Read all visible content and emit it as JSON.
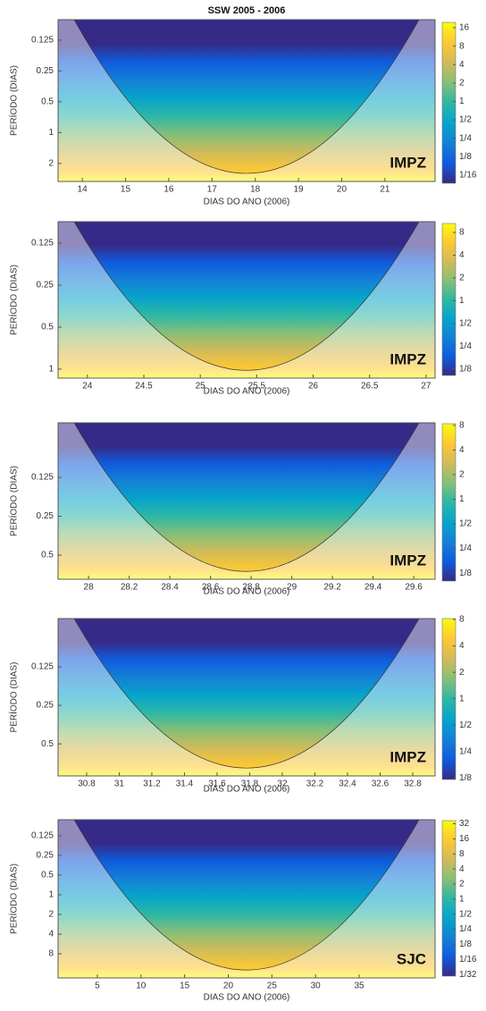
{
  "chart_data": [
    {
      "type": "heatmap",
      "title": "SSW 2005 - 2006",
      "xlabel": "DIAS DO ANO (2006)",
      "ylabel": "PERÍODO (DIAS)",
      "annotation": "IMPZ",
      "xlim": [
        13.44,
        22.16
      ],
      "xticks": [
        14,
        15,
        16,
        17,
        18,
        19,
        20,
        21
      ],
      "ylim": [
        0.079,
        3.0
      ],
      "yticks": [
        0.125,
        0.25,
        0.5,
        1,
        2
      ],
      "y_log": true,
      "clim": [
        0.046,
        19.6
      ],
      "cticks": [
        16,
        8,
        4,
        2,
        1,
        {
          "value": 0.5,
          "label": "1/2"
        },
        {
          "value": 0.25,
          "label": "1/4"
        },
        {
          "value": 0.125,
          "label": "1/8"
        },
        {
          "value": 0.0625,
          "label": "1/16"
        }
      ],
      "colormap": [
        "#352a87",
        "#0f5cdd",
        "#1481d6",
        "#06a4ca",
        "#2eb7a4",
        "#87bf77",
        "#d1bb59",
        "#fec832",
        "#f9fb0e"
      ]
    },
    {
      "type": "heatmap",
      "xlabel": "DIAS DO ANO (2006)",
      "ylabel": "PERÍODO (DIAS)",
      "annotation": "IMPZ",
      "xlim": [
        23.74,
        27.08
      ],
      "xticks": [
        24,
        24.5,
        25,
        25.5,
        26,
        26.5,
        27
      ],
      "ylim": [
        0.0877,
        1.16
      ],
      "yticks": [
        0.125,
        0.25,
        0.5,
        1
      ],
      "y_log": true,
      "clim": [
        0.103,
        10.5
      ],
      "cticks": [
        8,
        4,
        2,
        1,
        {
          "value": 0.5,
          "label": "1/2"
        },
        {
          "value": 0.25,
          "label": "1/4"
        },
        {
          "value": 0.125,
          "label": "1/8"
        }
      ],
      "colormap": [
        "#352a87",
        "#0f5cdd",
        "#1481d6",
        "#06a4ca",
        "#2eb7a4",
        "#87bf77",
        "#d1bb59",
        "#fec832",
        "#f9fb0e"
      ]
    },
    {
      "type": "heatmap",
      "xlabel": "DIAS DO ANO (2006)",
      "ylabel": "PERÍODO (DIAS)",
      "annotation": "IMPZ",
      "xlim": [
        27.85,
        29.705
      ],
      "xticks": [
        28,
        28.2,
        28.4,
        28.6,
        28.8,
        29,
        29.2,
        29.4,
        29.6
      ],
      "ylim": [
        0.0472,
        0.769
      ],
      "yticks": [
        0.125,
        0.25,
        0.5
      ],
      "y_log": true,
      "clim": [
        0.1,
        8.4
      ],
      "cticks": [
        8,
        4,
        2,
        1,
        {
          "value": 0.5,
          "label": "1/2"
        },
        {
          "value": 0.25,
          "label": "1/4"
        },
        {
          "value": 0.125,
          "label": "1/8"
        }
      ],
      "colormap": [
        "#352a87",
        "#0f5cdd",
        "#1481d6",
        "#06a4ca",
        "#2eb7a4",
        "#87bf77",
        "#d1bb59",
        "#fec832",
        "#f9fb0e"
      ]
    },
    {
      "type": "heatmap",
      "xlabel": "DIAS DO ANO (2006)",
      "ylabel": "PERÍODO (DIAS)",
      "annotation": "IMPZ",
      "xlim": [
        30.625,
        32.937
      ],
      "xticks": [
        30.8,
        31,
        31.2,
        31.4,
        31.6,
        31.8,
        32,
        32.2,
        32.4,
        32.6,
        32.8
      ],
      "ylim": [
        0.0524,
        0.89
      ],
      "yticks": [
        0.125,
        0.25,
        0.5
      ],
      "y_log": true,
      "clim": [
        0.12,
        8.2
      ],
      "cticks": [
        8,
        4,
        2,
        1,
        {
          "value": 0.5,
          "label": "1/2"
        },
        {
          "value": 0.25,
          "label": "1/4"
        },
        {
          "value": 0.125,
          "label": "1/8"
        }
      ],
      "colormap": [
        "#352a87",
        "#0f5cdd",
        "#1481d6",
        "#06a4ca",
        "#2eb7a4",
        "#87bf77",
        "#d1bb59",
        "#fec832",
        "#f9fb0e"
      ]
    },
    {
      "type": "heatmap",
      "xlabel": "DIAS DO ANO (2006)",
      "ylabel": "PERÍODO (DIAS)",
      "annotation": "SJC",
      "xlim": [
        0.5,
        43.7
      ],
      "xticks": [
        5,
        10,
        15,
        20,
        25,
        30,
        35
      ],
      "ylim": [
        0.071,
        18.7
      ],
      "yticks": [
        0.125,
        0.25,
        0.5,
        1,
        2,
        4,
        8
      ],
      "y_log": true,
      "clim": [
        0.029,
        37
      ],
      "cticks": [
        32,
        16,
        8,
        4,
        2,
        1,
        {
          "value": 0.5,
          "label": "1/2"
        },
        {
          "value": 0.25,
          "label": "1/4"
        },
        {
          "value": 0.125,
          "label": "1/8"
        },
        {
          "value": 0.0625,
          "label": "1/16"
        },
        {
          "value": 0.03125,
          "label": "1/32"
        }
      ],
      "colormap": [
        "#352a87",
        "#0f5cdd",
        "#1481d6",
        "#06a4ca",
        "#2eb7a4",
        "#87bf77",
        "#d1bb59",
        "#fec832",
        "#f9fb0e"
      ]
    }
  ]
}
